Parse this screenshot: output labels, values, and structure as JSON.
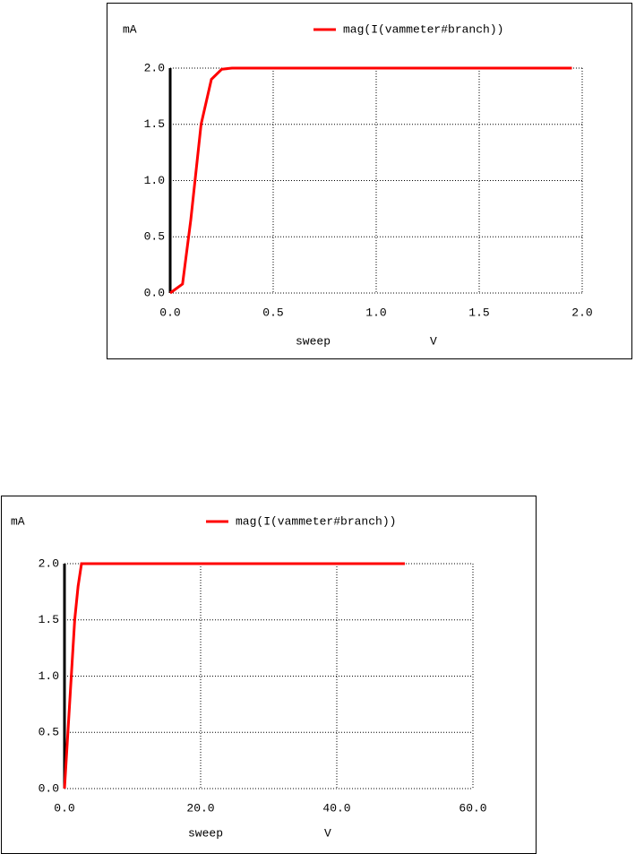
{
  "chart_data": [
    {
      "type": "line",
      "y_label": "mA",
      "x_label": "sweep",
      "x_unit": "V",
      "x": [
        0,
        0.06,
        0.1,
        0.15,
        0.2,
        0.25,
        0.3,
        1.95
      ],
      "series": [
        {
          "name": "mag(I(vammeter#branch))",
          "color": "#ff0000",
          "values": [
            0,
            0.08,
            0.65,
            1.5,
            1.9,
            1.99,
            2.0,
            2.0
          ]
        }
      ],
      "xlim": [
        0,
        2
      ],
      "ylim": [
        0,
        2
      ],
      "xticks": [
        {
          "value": 0,
          "label": "0.0"
        },
        {
          "value": 0.5,
          "label": "0.5"
        },
        {
          "value": 1,
          "label": "1.0"
        },
        {
          "value": 1.5,
          "label": "1.5"
        },
        {
          "value": 2,
          "label": "2.0"
        }
      ],
      "yticks": [
        {
          "value": 0,
          "label": "0.0"
        },
        {
          "value": 0.5,
          "label": "0.5"
        },
        {
          "value": 1,
          "label": "1.0"
        },
        {
          "value": 1.5,
          "label": "1.5"
        },
        {
          "value": 2,
          "label": "2.0"
        }
      ],
      "grid": true
    },
    {
      "type": "line",
      "y_label": "mA",
      "x_label": "sweep",
      "x_unit": "V",
      "x": [
        0,
        0.5,
        1,
        1.5,
        2,
        2.5,
        50
      ],
      "series": [
        {
          "name": "mag(I(vammeter#branch))",
          "color": "#ff0000",
          "values": [
            0,
            0.5,
            1.0,
            1.5,
            1.8,
            2.0,
            2.0
          ]
        }
      ],
      "xlim": [
        0,
        60
      ],
      "ylim": [
        0,
        2
      ],
      "xticks": [
        {
          "value": 0,
          "label": "0.0"
        },
        {
          "value": 20,
          "label": "20.0"
        },
        {
          "value": 40,
          "label": "40.0"
        },
        {
          "value": 60,
          "label": "60.0"
        }
      ],
      "yticks": [
        {
          "value": 0,
          "label": "0.0"
        },
        {
          "value": 0.5,
          "label": "0.5"
        },
        {
          "value": 1,
          "label": "1.0"
        },
        {
          "value": 1.5,
          "label": "1.5"
        },
        {
          "value": 2,
          "label": "2.0"
        }
      ],
      "grid": true
    }
  ]
}
